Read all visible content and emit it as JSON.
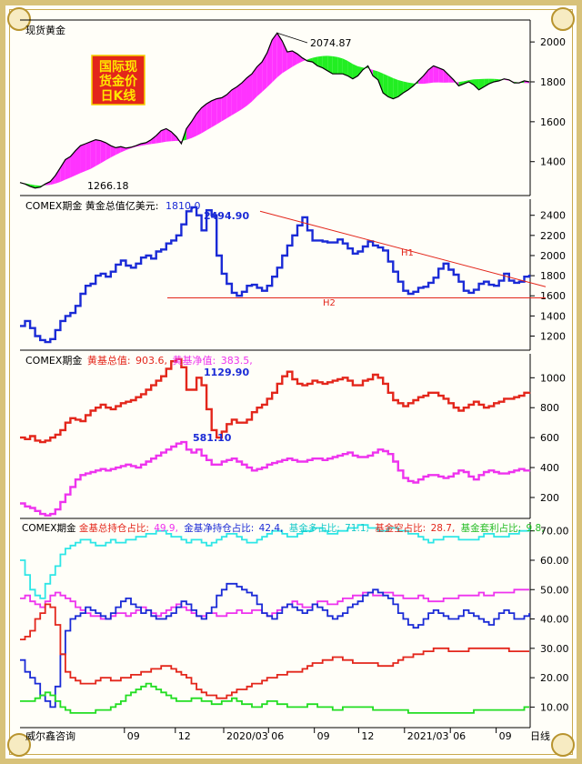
{
  "colors": {
    "price": "#000000",
    "ma_fill": "#ff33ff",
    "ma_fill_green": "#22ee22",
    "etf": "#1a2ad6",
    "gross": "#e3261b",
    "net": "#ee33ee",
    "cyan": "#2ee6e6",
    "green": "#22dd22",
    "trend": "#e3261b",
    "axis_text": "#000000",
    "badge_bg": "#e3261b",
    "badge_text": "#ffe600"
  },
  "badge": {
    "line1": "国际现",
    "line2": "货金价",
    "line3": "日K线"
  },
  "footer": {
    "brand": "威尔鑫咨询",
    "period": "日线"
  },
  "x_ticks": [
    "09",
    "12",
    "2020/03",
    "06",
    "09",
    "12",
    "2021/03",
    "06",
    "09"
  ],
  "chart_data": [
    {
      "type": "line",
      "title": "现货黄金",
      "ylim": [
        1230,
        2110
      ],
      "yticks": [
        1400,
        1600,
        1800,
        2000
      ],
      "annotations": {
        "high": "2074.87",
        "low": "1266.18"
      },
      "series": [
        {
          "values": [
            1295,
            1288,
            1276,
            1268,
            1272,
            1288,
            1300,
            1330,
            1370,
            1410,
            1425,
            1455,
            1480,
            1490,
            1500,
            1510,
            1505,
            1495,
            1480,
            1470,
            1475,
            1468,
            1472,
            1480,
            1490,
            1495,
            1510,
            1530,
            1555,
            1565,
            1550,
            1525,
            1490,
            1565,
            1600,
            1640,
            1670,
            1690,
            1705,
            1715,
            1720,
            1735,
            1760,
            1775,
            1795,
            1820,
            1840,
            1875,
            1900,
            1945,
            2010,
            2045,
            2005,
            1950,
            1955,
            1940,
            1920,
            1905,
            1900,
            1880,
            1870,
            1855,
            1840,
            1840,
            1840,
            1830,
            1815,
            1830,
            1860,
            1880,
            1830,
            1810,
            1745,
            1725,
            1715,
            1725,
            1745,
            1760,
            1780,
            1805,
            1830,
            1860,
            1880,
            1870,
            1860,
            1835,
            1810,
            1780,
            1790,
            1800,
            1785,
            1760,
            1775,
            1790,
            1800,
            1805,
            1815,
            1810,
            1795,
            1795,
            1805,
            1800
          ]
        }
      ]
    },
    {
      "type": "line",
      "title": "COMEX期金 黄金总值亿美元:",
      "value_label": "1810.0",
      "ylim": [
        1060,
        2560
      ],
      "yticks": [
        1200,
        1400,
        1600,
        1800,
        2000,
        2200,
        2400
      ],
      "annotations": {
        "high": "2494.90",
        "h1": "H1",
        "h2": "H2"
      },
      "series": [
        {
          "values": [
            1300,
            1350,
            1280,
            1200,
            1160,
            1140,
            1170,
            1260,
            1350,
            1400,
            1430,
            1500,
            1620,
            1700,
            1720,
            1800,
            1820,
            1790,
            1840,
            1910,
            1950,
            1900,
            1880,
            1920,
            1980,
            2000,
            1970,
            2040,
            2060,
            2120,
            2150,
            2200,
            2310,
            2440,
            2480,
            2400,
            2250,
            2450,
            2400,
            2000,
            1820,
            1720,
            1630,
            1600,
            1640,
            1700,
            1710,
            1680,
            1650,
            1700,
            1790,
            1880,
            2000,
            2100,
            2200,
            2300,
            2380,
            2250,
            2150,
            2150,
            2140,
            2130,
            2130,
            2160,
            2120,
            2070,
            2020,
            2040,
            2090,
            2140,
            2100,
            2080,
            2050,
            1940,
            1840,
            1740,
            1650,
            1620,
            1640,
            1680,
            1690,
            1730,
            1780,
            1870,
            1920,
            1860,
            1810,
            1740,
            1650,
            1630,
            1660,
            1720,
            1740,
            1710,
            1700,
            1750,
            1820,
            1750,
            1730,
            1740,
            1790,
            1810
          ]
        }
      ]
    },
    {
      "type": "line",
      "title": "COMEX期金",
      "ylim": [
        60,
        1160
      ],
      "yticks": [
        200,
        400,
        600,
        800,
        1000
      ],
      "annotations": {
        "gross_high": "1129.90",
        "net_high": "581.10"
      },
      "legend": [
        {
          "label": "黄基总值:",
          "value": "903.6,"
        },
        {
          "label": "黄基净值:",
          "value": "383.5,"
        }
      ],
      "series": [
        {
          "values": [
            600,
            590,
            610,
            580,
            570,
            580,
            600,
            620,
            650,
            700,
            730,
            720,
            710,
            750,
            780,
            800,
            820,
            800,
            790,
            810,
            830,
            840,
            850,
            870,
            890,
            920,
            950,
            980,
            1010,
            1060,
            1110,
            1125,
            1070,
            920,
            920,
            1000,
            950,
            790,
            650,
            600,
            640,
            690,
            720,
            700,
            700,
            720,
            770,
            800,
            820,
            860,
            900,
            960,
            1010,
            1040,
            990,
            960,
            950,
            960,
            980,
            970,
            960,
            970,
            980,
            990,
            1000,
            980,
            950,
            950,
            980,
            990,
            1020,
            1000,
            960,
            900,
            850,
            830,
            810,
            830,
            850,
            870,
            880,
            900,
            900,
            880,
            860,
            830,
            800,
            780,
            800,
            820,
            840,
            820,
            800,
            810,
            830,
            840,
            860,
            860,
            870,
            880,
            900,
            905
          ]
        },
        {
          "values": [
            160,
            140,
            130,
            110,
            90,
            80,
            90,
            120,
            170,
            220,
            270,
            320,
            350,
            360,
            370,
            380,
            390,
            380,
            390,
            400,
            410,
            420,
            410,
            400,
            420,
            440,
            460,
            480,
            500,
            520,
            540,
            560,
            570,
            520,
            500,
            520,
            480,
            450,
            420,
            420,
            440,
            450,
            460,
            440,
            420,
            400,
            380,
            390,
            400,
            420,
            430,
            440,
            450,
            460,
            450,
            440,
            440,
            450,
            460,
            460,
            450,
            460,
            470,
            480,
            490,
            500,
            480,
            470,
            470,
            480,
            500,
            520,
            510,
            490,
            440,
            380,
            330,
            310,
            300,
            320,
            340,
            350,
            350,
            340,
            330,
            340,
            360,
            380,
            370,
            340,
            320,
            350,
            370,
            380,
            370,
            360,
            360,
            370,
            380,
            390,
            380,
            384
          ]
        }
      ]
    },
    {
      "type": "line",
      "title": "COMEX期金",
      "ylim": [
        3,
        73
      ],
      "yticks": [
        10,
        20,
        30,
        40,
        50,
        60,
        70
      ],
      "legend": [
        {
          "label": "金基总持仓占比:",
          "value": "49.9,"
        },
        {
          "label": "金基净持仓占比:",
          "value": "42.4,"
        },
        {
          "label": "基金多占比:",
          "value": "71.1,"
        },
        {
          "label": "基金空占比:",
          "value": "28.7,"
        },
        {
          "label": "基金套利占比:",
          "value": "9.8,"
        }
      ],
      "series": [
        {
          "values": [
            47,
            48,
            46,
            45,
            44,
            46,
            48,
            49,
            48,
            47,
            46,
            44,
            43,
            42,
            41,
            41,
            40,
            40,
            41,
            42,
            42,
            41,
            42,
            43,
            44,
            43,
            42,
            41,
            42,
            43,
            44,
            45,
            44,
            43,
            42,
            41,
            41,
            42,
            42,
            41,
            41,
            42,
            42,
            43,
            42,
            42,
            43,
            43,
            42,
            41,
            42,
            43,
            44,
            45,
            46,
            45,
            44,
            44,
            45,
            46,
            46,
            45,
            45,
            46,
            47,
            47,
            48,
            48,
            49,
            49,
            48,
            48,
            49,
            49,
            48,
            48,
            47,
            47,
            47,
            48,
            47,
            46,
            46,
            46,
            47,
            47,
            47,
            48,
            48,
            48,
            48,
            49,
            48,
            48,
            49,
            49,
            49,
            49,
            50,
            50,
            50,
            50
          ]
        },
        {
          "values": [
            26,
            22,
            20,
            18,
            14,
            12,
            10,
            17,
            28,
            36,
            40,
            41,
            42,
            44,
            43,
            42,
            41,
            40,
            42,
            44,
            46,
            47,
            45,
            44,
            42,
            43,
            41,
            40,
            40,
            41,
            42,
            44,
            46,
            45,
            43,
            41,
            40,
            42,
            44,
            48,
            50,
            52,
            52,
            51,
            50,
            49,
            48,
            45,
            42,
            41,
            40,
            42,
            44,
            45,
            44,
            43,
            42,
            43,
            45,
            44,
            43,
            41,
            40,
            41,
            42,
            44,
            45,
            46,
            48,
            49,
            50,
            49,
            48,
            47,
            45,
            42,
            40,
            38,
            37,
            38,
            40,
            42,
            43,
            42,
            41,
            40,
            40,
            41,
            43,
            42,
            41,
            40,
            39,
            38,
            40,
            42,
            43,
            42,
            40,
            40,
            41,
            42
          ]
        },
        {
          "values": [
            60,
            55,
            50,
            48,
            47,
            52,
            55,
            58,
            62,
            64,
            65,
            66,
            67,
            67,
            66,
            65,
            65,
            66,
            67,
            66,
            66,
            67,
            67,
            68,
            68,
            69,
            69,
            70,
            70,
            69,
            68,
            68,
            67,
            66,
            67,
            67,
            66,
            65,
            66,
            67,
            68,
            69,
            69,
            68,
            67,
            66,
            66,
            67,
            68,
            69,
            70,
            70,
            69,
            68,
            68,
            69,
            70,
            70,
            71,
            71,
            70,
            69,
            69,
            70,
            70,
            71,
            71,
            72,
            72,
            71,
            71,
            70,
            70,
            71,
            71,
            70,
            70,
            69,
            69,
            68,
            67,
            66,
            67,
            67,
            68,
            68,
            68,
            67,
            67,
            67,
            67,
            68,
            69,
            69,
            68,
            68,
            68,
            69,
            69,
            70,
            70,
            71
          ]
        },
        {
          "values": [
            33,
            34,
            36,
            40,
            42,
            45,
            44,
            38,
            28,
            22,
            20,
            19,
            18,
            18,
            18,
            19,
            20,
            20,
            19,
            19,
            20,
            20,
            21,
            21,
            22,
            22,
            23,
            23,
            24,
            24,
            23,
            22,
            21,
            20,
            18,
            16,
            15,
            14,
            14,
            13,
            13,
            14,
            15,
            16,
            16,
            17,
            18,
            18,
            19,
            20,
            20,
            21,
            21,
            22,
            22,
            22,
            23,
            24,
            25,
            25,
            26,
            26,
            27,
            27,
            26,
            26,
            25,
            25,
            25,
            25,
            25,
            24,
            24,
            24,
            25,
            26,
            27,
            27,
            28,
            28,
            29,
            29,
            30,
            30,
            30,
            29,
            29,
            29,
            29,
            30,
            30,
            30,
            30,
            30,
            30,
            30,
            30,
            29,
            29,
            29,
            29,
            29
          ]
        },
        {
          "values": [
            12,
            12,
            12,
            13,
            14,
            15,
            14,
            12,
            10,
            9,
            8,
            8,
            8,
            8,
            8,
            9,
            9,
            9,
            10,
            11,
            12,
            14,
            15,
            16,
            17,
            18,
            17,
            16,
            15,
            14,
            13,
            12,
            12,
            12,
            13,
            13,
            12,
            12,
            11,
            11,
            12,
            12,
            13,
            12,
            11,
            11,
            10,
            10,
            11,
            12,
            12,
            11,
            11,
            10,
            10,
            10,
            10,
            11,
            11,
            10,
            10,
            10,
            9,
            9,
            10,
            10,
            10,
            10,
            10,
            10,
            9,
            9,
            9,
            9,
            9,
            9,
            9,
            8,
            8,
            8,
            8,
            8,
            8,
            8,
            8,
            8,
            8,
            8,
            8,
            8,
            9,
            9,
            9,
            9,
            9,
            9,
            9,
            9,
            9,
            9,
            10,
            10
          ]
        }
      ]
    }
  ]
}
